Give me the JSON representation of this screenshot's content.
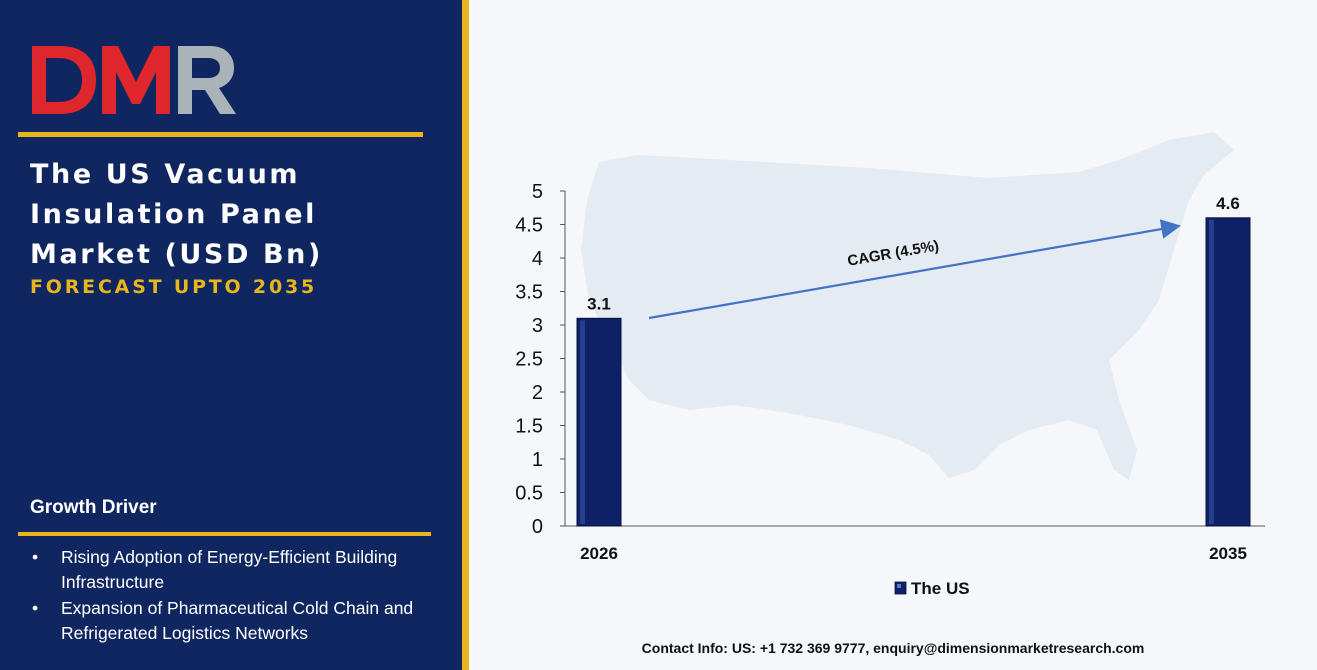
{
  "brand": {
    "logo_text": "DMR",
    "logo_colors": {
      "d": "#e0262d",
      "m": "#e0262d",
      "r": "#a9b3b8"
    }
  },
  "header": {
    "title_lines": [
      "The US Vacuum",
      "Insulation Panel",
      "Market (USD Bn)"
    ],
    "subtitle": "FORECAST UPTO 2035"
  },
  "growth": {
    "title": "Growth Driver",
    "items": [
      {
        "bullet": "•",
        "text": "Rising Adoption of Energy-Efficient Building Infrastructure"
      },
      {
        "bullet": "•",
        "text": "Expansion of Pharmaceutical Cold Chain and Refrigerated Logistics Networks"
      }
    ]
  },
  "chart_data": {
    "type": "bar",
    "categories": [
      "2026",
      "2035"
    ],
    "series": [
      {
        "name": "The US",
        "values": [
          3.1,
          4.6
        ],
        "color": "#0f2166"
      }
    ],
    "data_labels": [
      "3.1",
      "4.6"
    ],
    "yticks": [
      "0",
      "0.5",
      "1",
      "1.5",
      "2",
      "2.5",
      "3",
      "3.5",
      "4",
      "4.5",
      "5"
    ],
    "ylim": [
      0,
      5
    ],
    "legend": "bottom",
    "annotation": "CAGR (4.5%)",
    "arrow_color": "#4472c4"
  },
  "footer": {
    "contact": "Contact Info: US: +1 732 369 9777, enquiry@dimensionmarketresearch.com"
  }
}
